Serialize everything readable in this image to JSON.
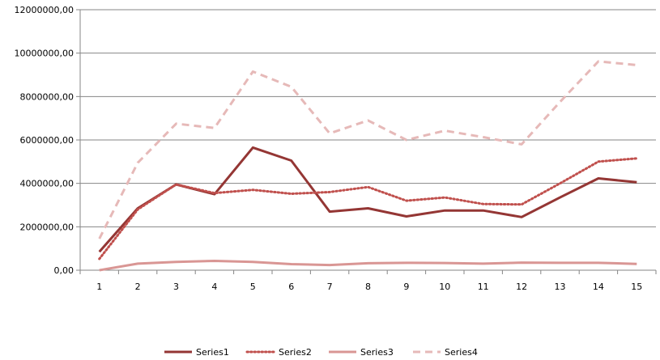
{
  "chart_data": {
    "type": "line",
    "categories": [
      "1",
      "2",
      "3",
      "4",
      "5",
      "6",
      "7",
      "8",
      "9",
      "10",
      "11",
      "12",
      "13",
      "14",
      "15"
    ],
    "y_ticks": [
      "0,00",
      "2000000,00",
      "4000000,00",
      "6000000,00",
      "8000000,00",
      "10000000,00",
      "12000000,00"
    ],
    "ylim": [
      0,
      12000000
    ],
    "grid": "horizontal",
    "legend_position": "bottom",
    "series": [
      {
        "name": "Series1",
        "color": "#943634",
        "dash": "solid",
        "values": [
          850000,
          2850000,
          3950000,
          3500000,
          5650000,
          5050000,
          2700000,
          2850000,
          2480000,
          2750000,
          2750000,
          2450000,
          3350000,
          4230000,
          4050000
        ]
      },
      {
        "name": "Series2",
        "color": "#c0504d",
        "dash": "dotted",
        "values": [
          520000,
          2800000,
          3950000,
          3550000,
          3700000,
          3520000,
          3600000,
          3830000,
          3200000,
          3350000,
          3050000,
          3030000,
          4000000,
          5000000,
          5150000
        ]
      },
      {
        "name": "Series3",
        "color": "#d99694",
        "dash": "solid",
        "values": [
          0,
          300000,
          380000,
          430000,
          380000,
          280000,
          240000,
          320000,
          340000,
          330000,
          300000,
          350000,
          340000,
          340000,
          290000
        ]
      },
      {
        "name": "Series4",
        "color": "#e6b9b8",
        "dash": "dashed",
        "values": [
          1450000,
          4950000,
          6750000,
          6550000,
          9150000,
          8450000,
          6300000,
          6900000,
          6000000,
          6430000,
          6130000,
          5800000,
          7750000,
          9620000,
          9450000
        ]
      }
    ]
  }
}
